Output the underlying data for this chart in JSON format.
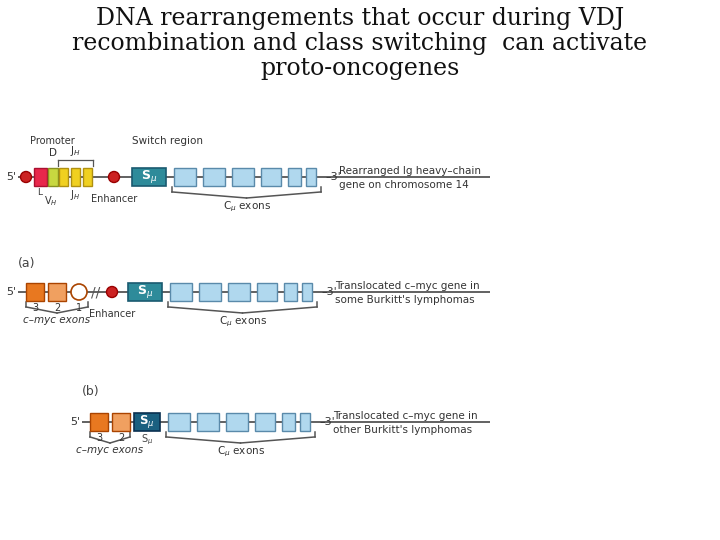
{
  "title_lines": [
    "DNA rearrangements that occur during VDJ",
    "recombination and class switching  can activate",
    "proto-oncogenes"
  ],
  "bg_color": "#ffffff",
  "colors": {
    "red_box": "#e8274b",
    "green_box": "#c8d840",
    "yellow_box": "#f0d020",
    "teal_box": "#2e8b9a",
    "light_blue_box": "#b0d8ee",
    "orange_dark": "#e87820",
    "orange_light": "#f0a060",
    "red_dot": "#cc2222",
    "dark_teal": "#1a6080"
  },
  "right_labels": {
    "row1": [
      "Rearranged Ig heavy–chain",
      "gene on chromosome 14"
    ],
    "row2": [
      "Translocated c–myc gene in",
      "some Burkitt's lymphomas"
    ],
    "row3": [
      "Translocated c–myc gene in",
      "other Burkitt's lymphomas"
    ]
  }
}
